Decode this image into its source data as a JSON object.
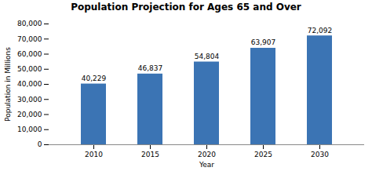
{
  "chart_data": {
    "type": "bar",
    "title": "Population Projection for Ages 65 and Over",
    "xlabel": "Year",
    "ylabel": "Population in Millions",
    "categories": [
      "2010",
      "2015",
      "2020",
      "2025",
      "2030"
    ],
    "values": [
      40229,
      46837,
      54804,
      63907,
      72092
    ],
    "value_labels": [
      "40,229",
      "46,837",
      "54,804",
      "63,907",
      "72,092"
    ],
    "data_labels": true,
    "color": "#3B74B4",
    "ylim": [
      0,
      80000
    ],
    "yticks": [
      0,
      {
        "value": 10000,
        "label": "10,000"
      },
      {
        "value": 20000,
        "label": "20,000"
      },
      {
        "value": 30000,
        "label": "30,000"
      },
      {
        "value": 40000,
        "label": "40,000"
      },
      {
        "value": 50000,
        "label": "50,000"
      },
      {
        "value": 60000,
        "label": "60,000"
      },
      {
        "value": 70000,
        "label": "70,000"
      },
      {
        "value": 80000,
        "label": "80,000"
      }
    ],
    "grid": false
  }
}
